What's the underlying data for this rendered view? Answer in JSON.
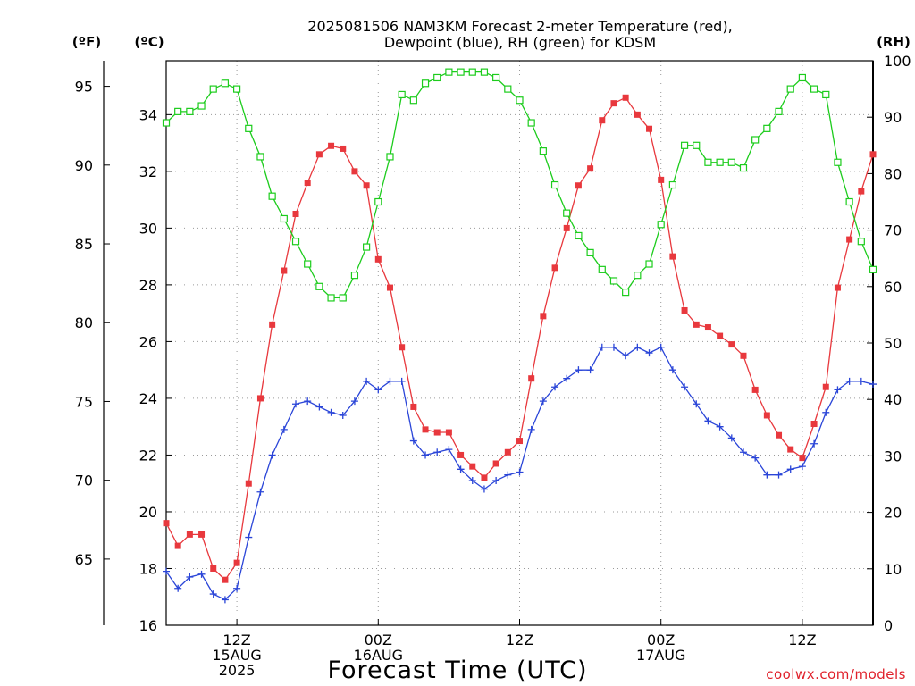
{
  "chart_data": {
    "type": "line",
    "title": "2025081506 NAM3KM Forecast 2-meter Temperature (red),",
    "subtitle": "Dewpoint (blue), RH (green) for KDSM",
    "xlabel": "Forecast Time (UTC)",
    "axes": {
      "left_outer_unit": "(ºF)",
      "left_inner_unit": "(ºC)",
      "right_unit": "(RH)",
      "celsius_ylim": [
        16,
        35.9
      ],
      "celsius_ticks": [
        "16",
        "18",
        "20",
        "22",
        "24",
        "26",
        "28",
        "30",
        "32",
        "34"
      ],
      "fahrenheit_ticks": [
        "65",
        "70",
        "75",
        "80",
        "85",
        "90",
        "95"
      ],
      "rh_ylim": [
        0,
        100
      ],
      "rh_ticks": [
        "0",
        "10",
        "20",
        "30",
        "40",
        "50",
        "60",
        "70",
        "80",
        "90",
        "100"
      ],
      "x_hours_range": [
        6,
        66
      ],
      "x_tick_hours": [
        12,
        24,
        36,
        48,
        60
      ],
      "x_ticks": [
        {
          "line1": "12Z",
          "line2": "15AUG",
          "line3": "2025"
        },
        {
          "line1": "00Z",
          "line2": "16AUG",
          "line3": ""
        },
        {
          "line1": "12Z",
          "line2": "",
          "line3": ""
        },
        {
          "line1": "00Z",
          "line2": "17AUG",
          "line3": ""
        },
        {
          "line1": "12Z",
          "line2": "",
          "line3": ""
        }
      ],
      "grid": true
    },
    "x_hours": [
      6,
      7,
      8,
      9,
      10,
      11,
      12,
      13,
      14,
      15,
      16,
      17,
      18,
      19,
      20,
      21,
      22,
      23,
      24,
      25,
      26,
      27,
      28,
      29,
      30,
      31,
      32,
      33,
      34,
      35,
      36,
      37,
      38,
      39,
      40,
      41,
      42,
      43,
      44,
      45,
      46,
      47,
      48,
      49,
      50,
      51,
      52,
      53,
      54,
      55,
      56,
      57,
      58,
      59,
      60,
      61,
      62,
      63,
      64,
      65,
      66
    ],
    "series": [
      {
        "name": "2-meter Temperature",
        "color": "#e8383d",
        "marker": "filled-square",
        "unit": "C",
        "values": [
          19.6,
          18.8,
          19.2,
          19.2,
          18.0,
          17.6,
          18.2,
          21.0,
          24.0,
          26.6,
          28.5,
          30.5,
          31.6,
          32.6,
          32.9,
          32.8,
          32.0,
          31.5,
          28.9,
          27.9,
          25.8,
          23.7,
          22.9,
          22.8,
          22.8,
          22.0,
          21.6,
          21.2,
          21.7,
          22.1,
          22.5,
          24.7,
          26.9,
          28.6,
          30.0,
          31.5,
          32.1,
          33.8,
          34.4,
          34.6,
          34.0,
          33.5,
          31.7,
          29.0,
          27.1,
          26.6,
          26.5,
          26.2,
          25.9,
          25.5,
          24.3,
          23.4,
          22.7,
          22.2,
          21.9,
          23.1,
          24.4,
          27.9,
          29.6,
          31.3,
          32.6
        ]
      },
      {
        "name": "Dewpoint",
        "color": "#2a45d8",
        "marker": "plus",
        "unit": "C",
        "values": [
          17.9,
          17.3,
          17.7,
          17.8,
          17.1,
          16.9,
          17.3,
          19.1,
          20.7,
          22.0,
          22.9,
          23.8,
          23.9,
          23.7,
          23.5,
          23.4,
          23.9,
          24.6,
          24.3,
          24.6,
          24.6,
          22.5,
          22.0,
          22.1,
          22.2,
          21.5,
          21.1,
          20.8,
          21.1,
          21.3,
          21.4,
          22.9,
          23.9,
          24.4,
          24.7,
          25.0,
          25.0,
          25.8,
          25.8,
          25.5,
          25.8,
          25.6,
          25.8,
          25.0,
          24.4,
          23.8,
          23.2,
          23.0,
          22.6,
          22.1,
          21.9,
          21.3,
          21.3,
          21.5,
          21.6,
          22.4,
          23.5,
          24.3,
          24.6,
          24.6,
          24.5
        ]
      },
      {
        "name": "RH",
        "color": "#1ccc1c",
        "marker": "open-square",
        "unit": "%",
        "values": [
          89,
          91,
          91,
          92,
          95,
          96,
          95,
          88,
          83,
          76,
          72,
          68,
          64,
          60,
          58,
          58,
          62,
          67,
          75,
          83,
          94,
          93,
          96,
          97,
          98,
          98,
          98,
          98,
          97,
          95,
          93,
          89,
          84,
          78,
          73,
          69,
          66,
          63,
          61,
          59,
          62,
          64,
          71,
          78,
          85,
          85,
          82,
          82,
          82,
          81,
          86,
          88,
          91,
          95,
          97,
          95,
          94,
          82,
          75,
          68,
          63
        ]
      }
    ]
  },
  "credit": "coolwx.com/models"
}
